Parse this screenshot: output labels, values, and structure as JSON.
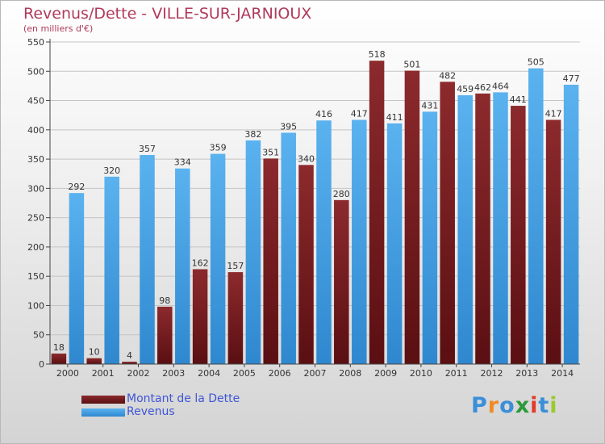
{
  "header": {
    "title": "Revenus/Dette - VILLE-SUR-JARNIOUX",
    "subtitle": "(en milliers d'€)"
  },
  "logo": {
    "text": "Proxiti"
  },
  "chart_data": {
    "type": "bar",
    "title": "Revenus/Dette - VILLE-SUR-JARNIOUX",
    "subtitle": "(en milliers d'€)",
    "xlabel": "",
    "ylabel": "",
    "ylim": [
      0,
      550
    ],
    "yticks": [
      0,
      50,
      100,
      150,
      200,
      250,
      300,
      350,
      400,
      450,
      500,
      550
    ],
    "grid": true,
    "legend_position": "bottom-left",
    "categories": [
      "2000",
      "2001",
      "2002",
      "2003",
      "2004",
      "2005",
      "2006",
      "2007",
      "2008",
      "2009",
      "2010",
      "2011",
      "2012",
      "2013",
      "2014"
    ],
    "series": [
      {
        "name": "Montant de la Dette",
        "color": "#7a1f22",
        "values": [
          18,
          10,
          4,
          98,
          162,
          157,
          351,
          340,
          280,
          518,
          501,
          482,
          462,
          441,
          417
        ]
      },
      {
        "name": "Revenus",
        "color": "#4aa6e8",
        "values": [
          292,
          320,
          357,
          334,
          359,
          382,
          395,
          416,
          417,
          411,
          431,
          459,
          464,
          505,
          477
        ]
      }
    ]
  }
}
